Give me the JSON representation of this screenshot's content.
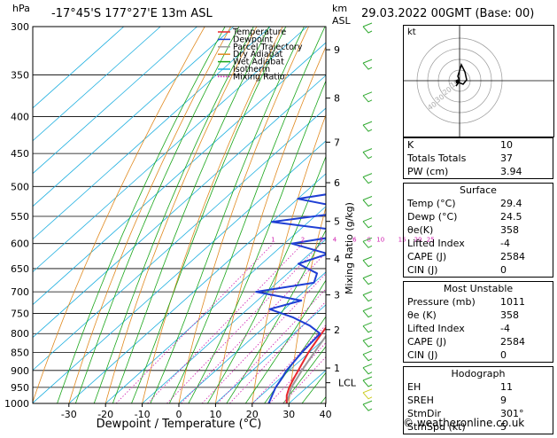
{
  "header": {
    "hpa_label": "hPa",
    "location": "-17°45'S  177°27'E  13m  ASL",
    "km_label": "km",
    "asl_label": "ASL",
    "datetime": "29.03.2022  00GMT  (Base: 00)"
  },
  "chart_data": {
    "type": "skew-t",
    "xlabel": "Dewpoint / Temperature (°C)",
    "ylabel_right": "Mixing Ratio (g/kg)",
    "x_ticks": [
      -30,
      -20,
      -10,
      0,
      10,
      20,
      30,
      40
    ],
    "pressure_ticks": [
      300,
      350,
      400,
      450,
      500,
      550,
      600,
      650,
      700,
      750,
      800,
      850,
      900,
      950,
      1000
    ],
    "height_ticks": [
      {
        "km": "9",
        "p": 323
      },
      {
        "km": "8",
        "p": 377
      },
      {
        "km": "7",
        "p": 434
      },
      {
        "km": "6",
        "p": 494
      },
      {
        "km": "5",
        "p": 559
      },
      {
        "km": "4",
        "p": 630
      },
      {
        "km": "3",
        "p": 707
      },
      {
        "km": "2",
        "p": 790
      },
      {
        "km": "1",
        "p": 893
      },
      {
        "km": "LCL",
        "p": 936
      }
    ],
    "mixing_ratio_labels": [
      "1",
      "2",
      "3",
      "4",
      "6",
      "8",
      "10",
      "15",
      "20",
      "25"
    ],
    "mixing_ratio_values": [
      1,
      2,
      3,
      4,
      6,
      8,
      10,
      15,
      20,
      25
    ],
    "legend": [
      "Temperature",
      "Dewpoint",
      "Parcel Trajectory",
      "Dry Adiabat",
      "Wet Adiabat",
      "Isotherm",
      "Mixing Ratio"
    ],
    "colors": {
      "temperature": "#e8282d",
      "dewpoint": "#1f3fd4",
      "parcel": "#9a9a9a",
      "dry_adiabat": "#e08a20",
      "wet_adiabat": "#1aa61a",
      "isotherm": "#20b0e0",
      "mixing_ratio": "#d020b0"
    },
    "temperature": [
      [
        1000,
        29.4
      ],
      [
        975,
        27
      ],
      [
        950,
        25.2
      ],
      [
        925,
        23.8
      ],
      [
        900,
        22.5
      ],
      [
        850,
        19.8
      ],
      [
        800,
        17.6
      ],
      [
        750,
        15.5
      ],
      [
        700,
        12.6
      ],
      [
        650,
        9.5
      ],
      [
        600,
        6
      ],
      [
        550,
        1.5
      ],
      [
        500,
        -4
      ],
      [
        450,
        -10
      ],
      [
        400,
        -17
      ],
      [
        350,
        -25
      ],
      [
        300,
        -34
      ]
    ],
    "dewpoint": [
      [
        1000,
        24.5
      ],
      [
        975,
        23
      ],
      [
        950,
        21.5
      ],
      [
        925,
        20.5
      ],
      [
        900,
        19.3
      ],
      [
        850,
        18
      ],
      [
        800,
        17.2
      ],
      [
        780,
        12
      ],
      [
        760,
        5
      ],
      [
        740,
        -4
      ],
      [
        720,
        2
      ],
      [
        700,
        -13
      ],
      [
        680,
        0
      ],
      [
        660,
        -2
      ],
      [
        640,
        -10
      ],
      [
        620,
        -5
      ],
      [
        600,
        -18
      ],
      [
        580,
        -3
      ],
      [
        560,
        -30
      ],
      [
        540,
        -10
      ],
      [
        520,
        -30
      ],
      [
        500,
        -12
      ],
      [
        450,
        -17
      ],
      [
        400,
        -30
      ],
      [
        380,
        -30
      ],
      [
        350,
        -38
      ],
      [
        320,
        -42
      ],
      [
        300,
        -47
      ]
    ],
    "parcel": [
      [
        1000,
        29.4
      ],
      [
        950,
        25.8
      ],
      [
        900,
        23.5
      ],
      [
        850,
        21.4
      ],
      [
        800,
        19.3
      ],
      [
        750,
        17.1
      ],
      [
        700,
        14.7
      ],
      [
        650,
        12
      ],
      [
        600,
        9
      ],
      [
        550,
        5.5
      ],
      [
        500,
        1.5
      ],
      [
        450,
        -3.5
      ],
      [
        400,
        -9.5
      ],
      [
        350,
        -17
      ],
      [
        300,
        -26
      ]
    ]
  },
  "hodograph": {
    "label": "kt",
    "ring_labels": [
      "10",
      "20",
      "30",
      "40"
    ]
  },
  "indices": [
    {
      "label": "K",
      "value": "10"
    },
    {
      "label": "Totals Totals",
      "value": "37"
    },
    {
      "label": "PW (cm)",
      "value": "3.94"
    }
  ],
  "surface": {
    "title": "Surface",
    "rows": [
      {
        "label": "Temp (°C)",
        "value": "29.4"
      },
      {
        "label": "Dewp (°C)",
        "value": "24.5"
      },
      {
        "label": "θe(K)",
        "value": "358"
      },
      {
        "label": "Lifted Index",
        "value": "-4"
      },
      {
        "label": "CAPE (J)",
        "value": "2584"
      },
      {
        "label": "CIN (J)",
        "value": "0"
      }
    ]
  },
  "most_unstable": {
    "title": "Most Unstable",
    "rows": [
      {
        "label": "Pressure (mb)",
        "value": "1011"
      },
      {
        "label": "θe (K)",
        "value": "358"
      },
      {
        "label": "Lifted Index",
        "value": "-4"
      },
      {
        "label": "CAPE (J)",
        "value": "2584"
      },
      {
        "label": "CIN (J)",
        "value": "0"
      }
    ]
  },
  "hodo_table": {
    "title": "Hodograph",
    "rows": [
      {
        "label": "EH",
        "value": "11"
      },
      {
        "label": "SREH",
        "value": "9"
      },
      {
        "label": "StmDir",
        "value": "301°"
      },
      {
        "label": "StmSpd (kt)",
        "value": "5"
      }
    ]
  },
  "credit": "© weatheronline.co.uk"
}
